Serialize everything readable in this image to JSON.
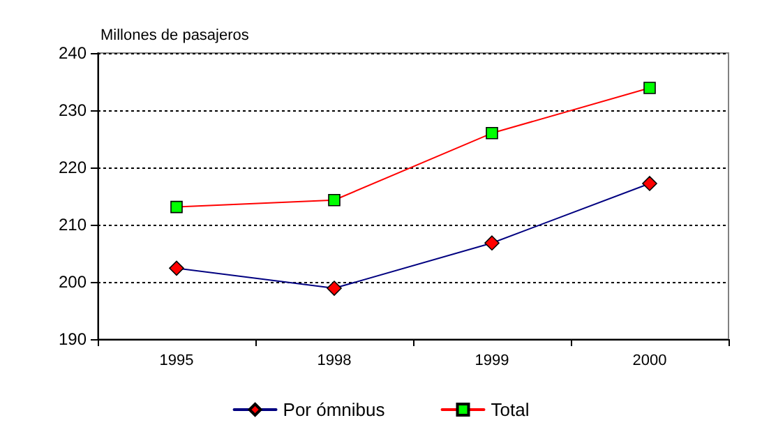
{
  "chart_data": {
    "type": "line",
    "ylabel": "Millones de pasajeros",
    "categories": [
      "1995",
      "1998",
      "1999",
      "2000"
    ],
    "series": [
      {
        "name": "Por ómnibus",
        "color": "#000080",
        "colors": [
          "#ff0000",
          "#ff0000",
          "#ff0000",
          "#ff0000"
        ],
        "marker": "diamond",
        "values": [
          202.4,
          198.9,
          206.8,
          217.2
        ]
      },
      {
        "name": "Total",
        "color": "#ff0000",
        "colors": [
          "#00ff00",
          "#00ff00",
          "#00ff00",
          "#00ff00"
        ],
        "marker": "square",
        "values": [
          213.1,
          214.3,
          226,
          233.9
        ]
      }
    ],
    "ylim": [
      190,
      240
    ],
    "yticks": [
      190,
      200,
      210,
      220,
      230,
      240
    ],
    "grid": "y",
    "line_style": "solid",
    "legend": "bottom"
  }
}
